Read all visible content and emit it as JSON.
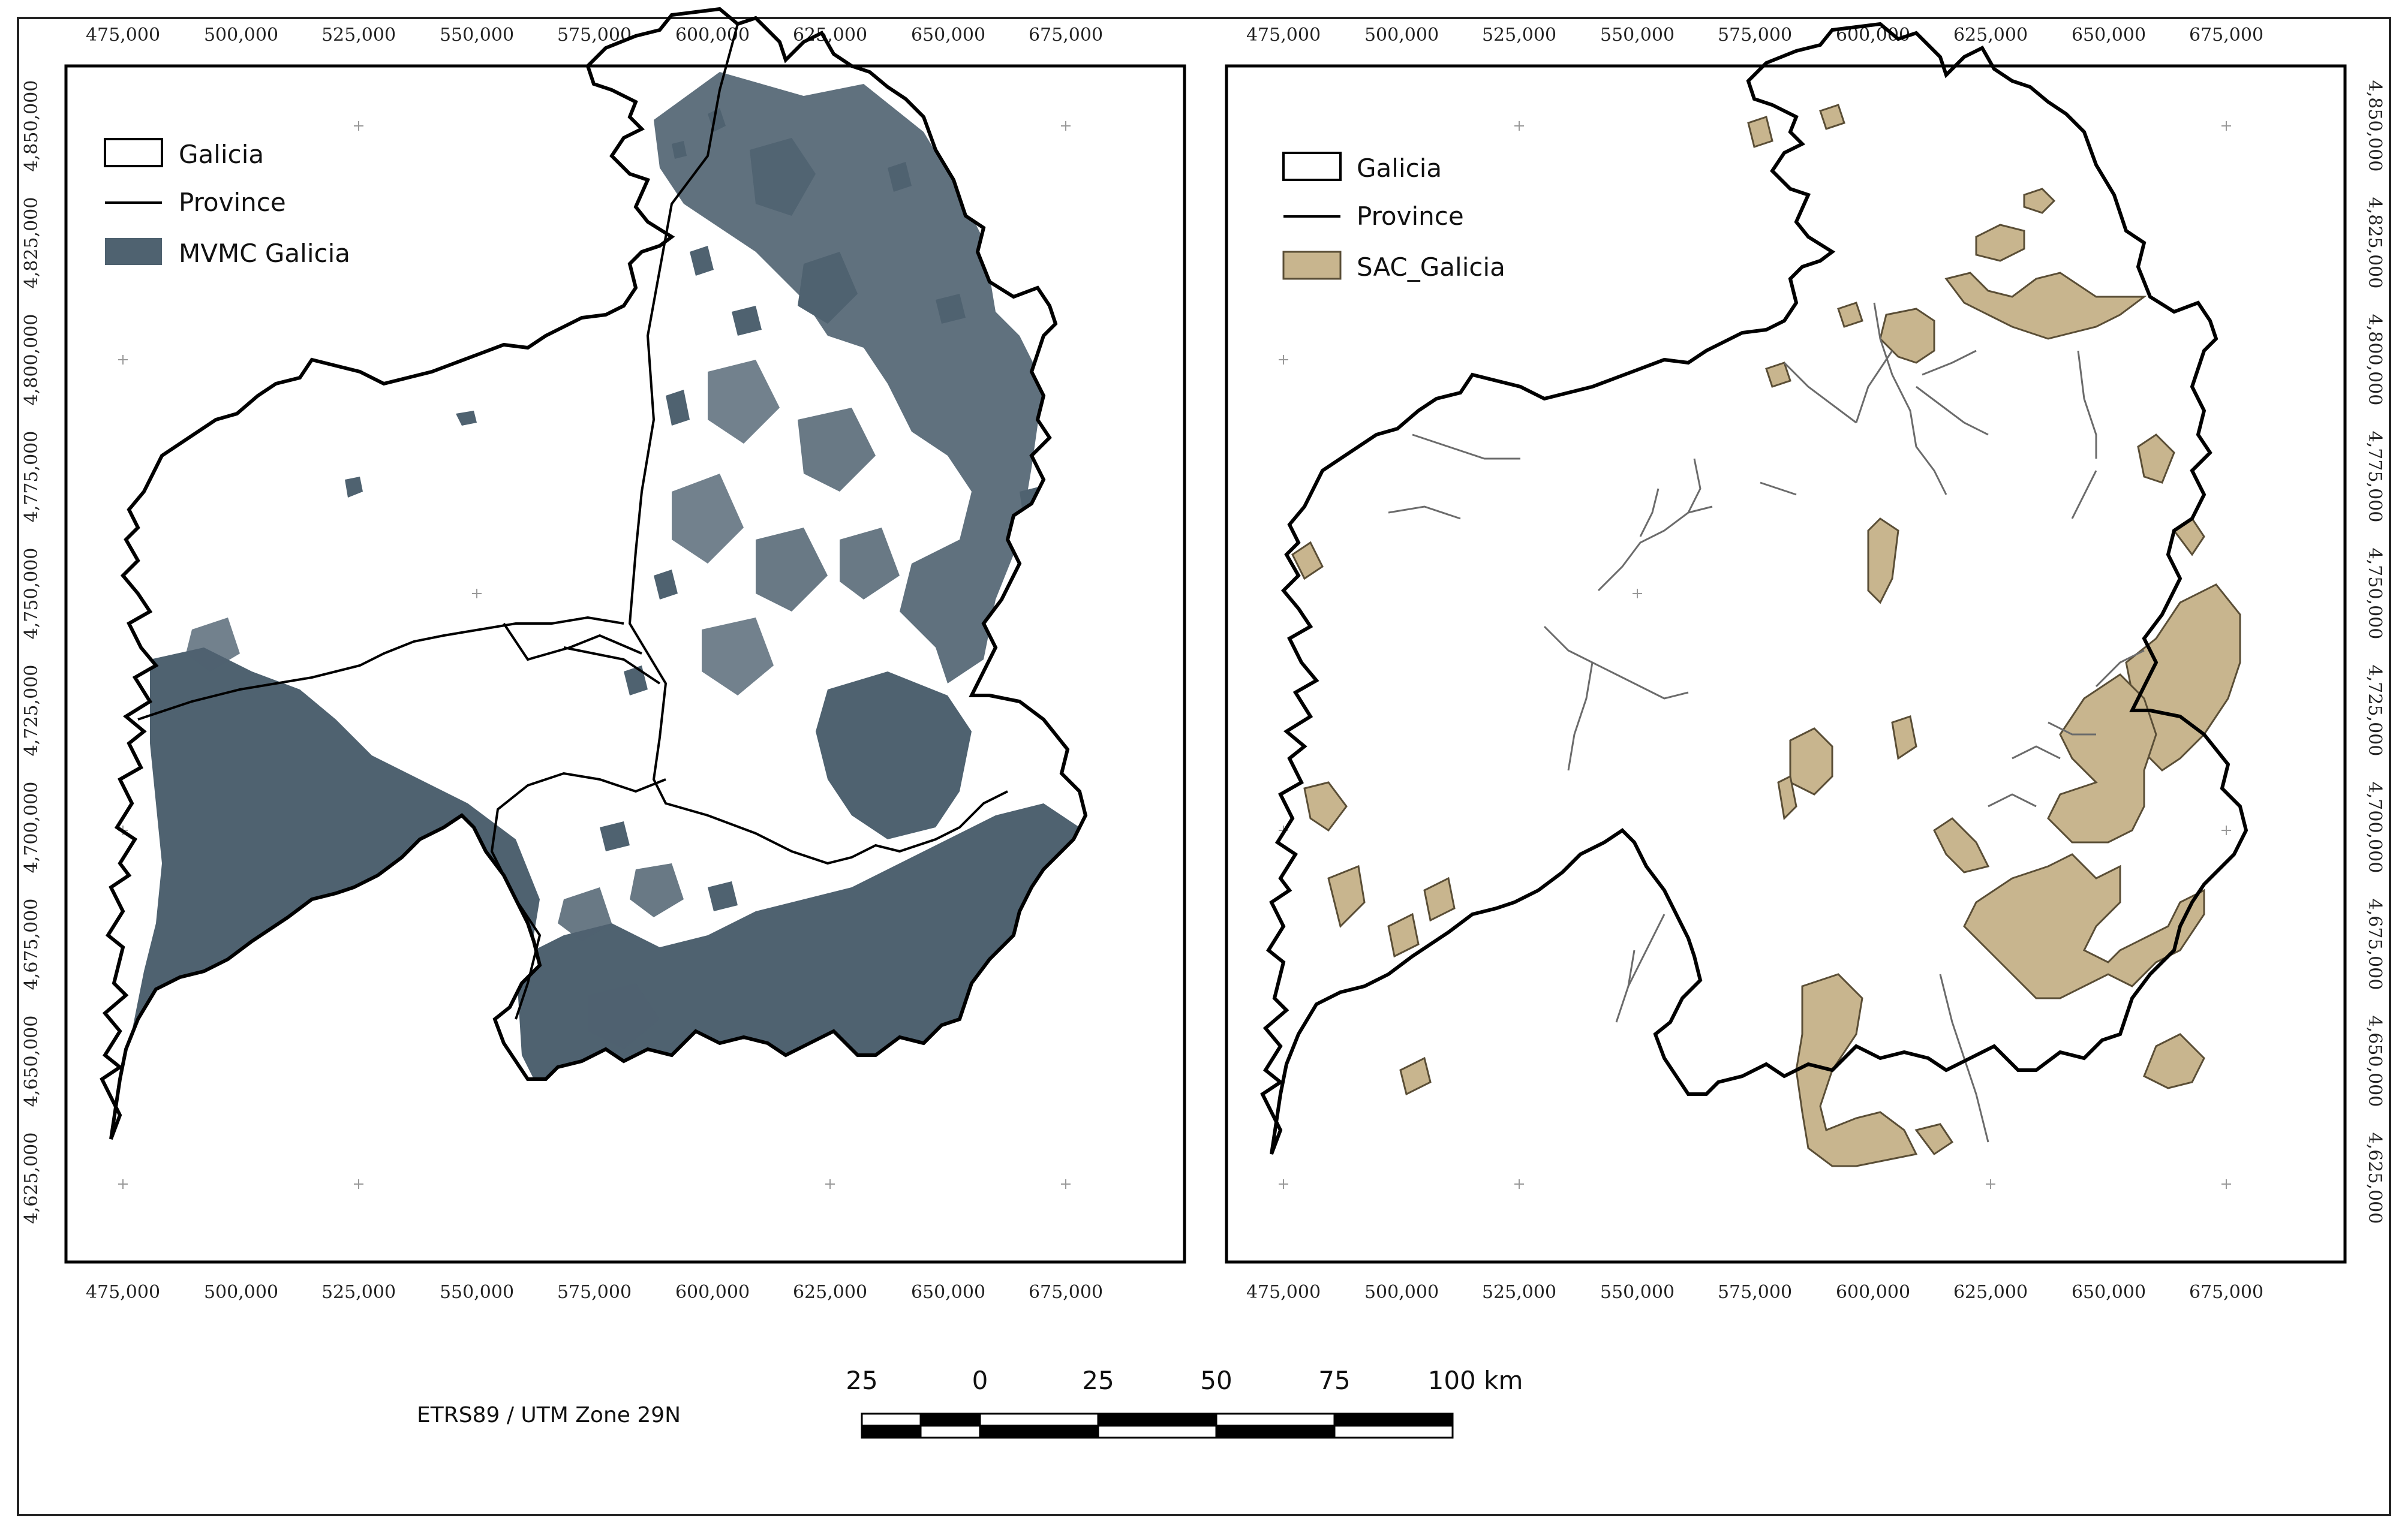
{
  "x_ticks": [
    "475,000",
    "500,000",
    "525,000",
    "550,000",
    "575,000",
    "600,000",
    "625,000",
    "650,000",
    "675,000"
  ],
  "y_ticks": [
    "4,850,000",
    "4,825,000",
    "4,800,000",
    "4,775,000",
    "4,750,000",
    "4,725,000",
    "4,700,000",
    "4,675,000",
    "4,650,000",
    "4,625,000"
  ],
  "left_map": {
    "legend": [
      {
        "label": "Galicia",
        "symbol": "polygon-outline"
      },
      {
        "label": "Province",
        "symbol": "line"
      },
      {
        "label": "MVMC Galicia",
        "symbol": "fill"
      }
    ],
    "fill_color": "#4f6270"
  },
  "right_map": {
    "legend": [
      {
        "label": "Galicia",
        "symbol": "polygon-outline"
      },
      {
        "label": "Province",
        "symbol": "line"
      },
      {
        "label": "SAC_Galicia",
        "symbol": "fill"
      }
    ],
    "fill_color": "#c8b58e"
  },
  "crs_label": "ETRS89 / UTM Zone 29N",
  "scale_bar": {
    "labels": [
      "25",
      "0",
      "25",
      "50",
      "75",
      "100 km"
    ]
  },
  "colors": {
    "outline": "#000000",
    "mvmc": "#4f6270",
    "sac": "#c8b58e",
    "sac_stroke": "#5a4e36",
    "river": "#6b6b6b"
  }
}
